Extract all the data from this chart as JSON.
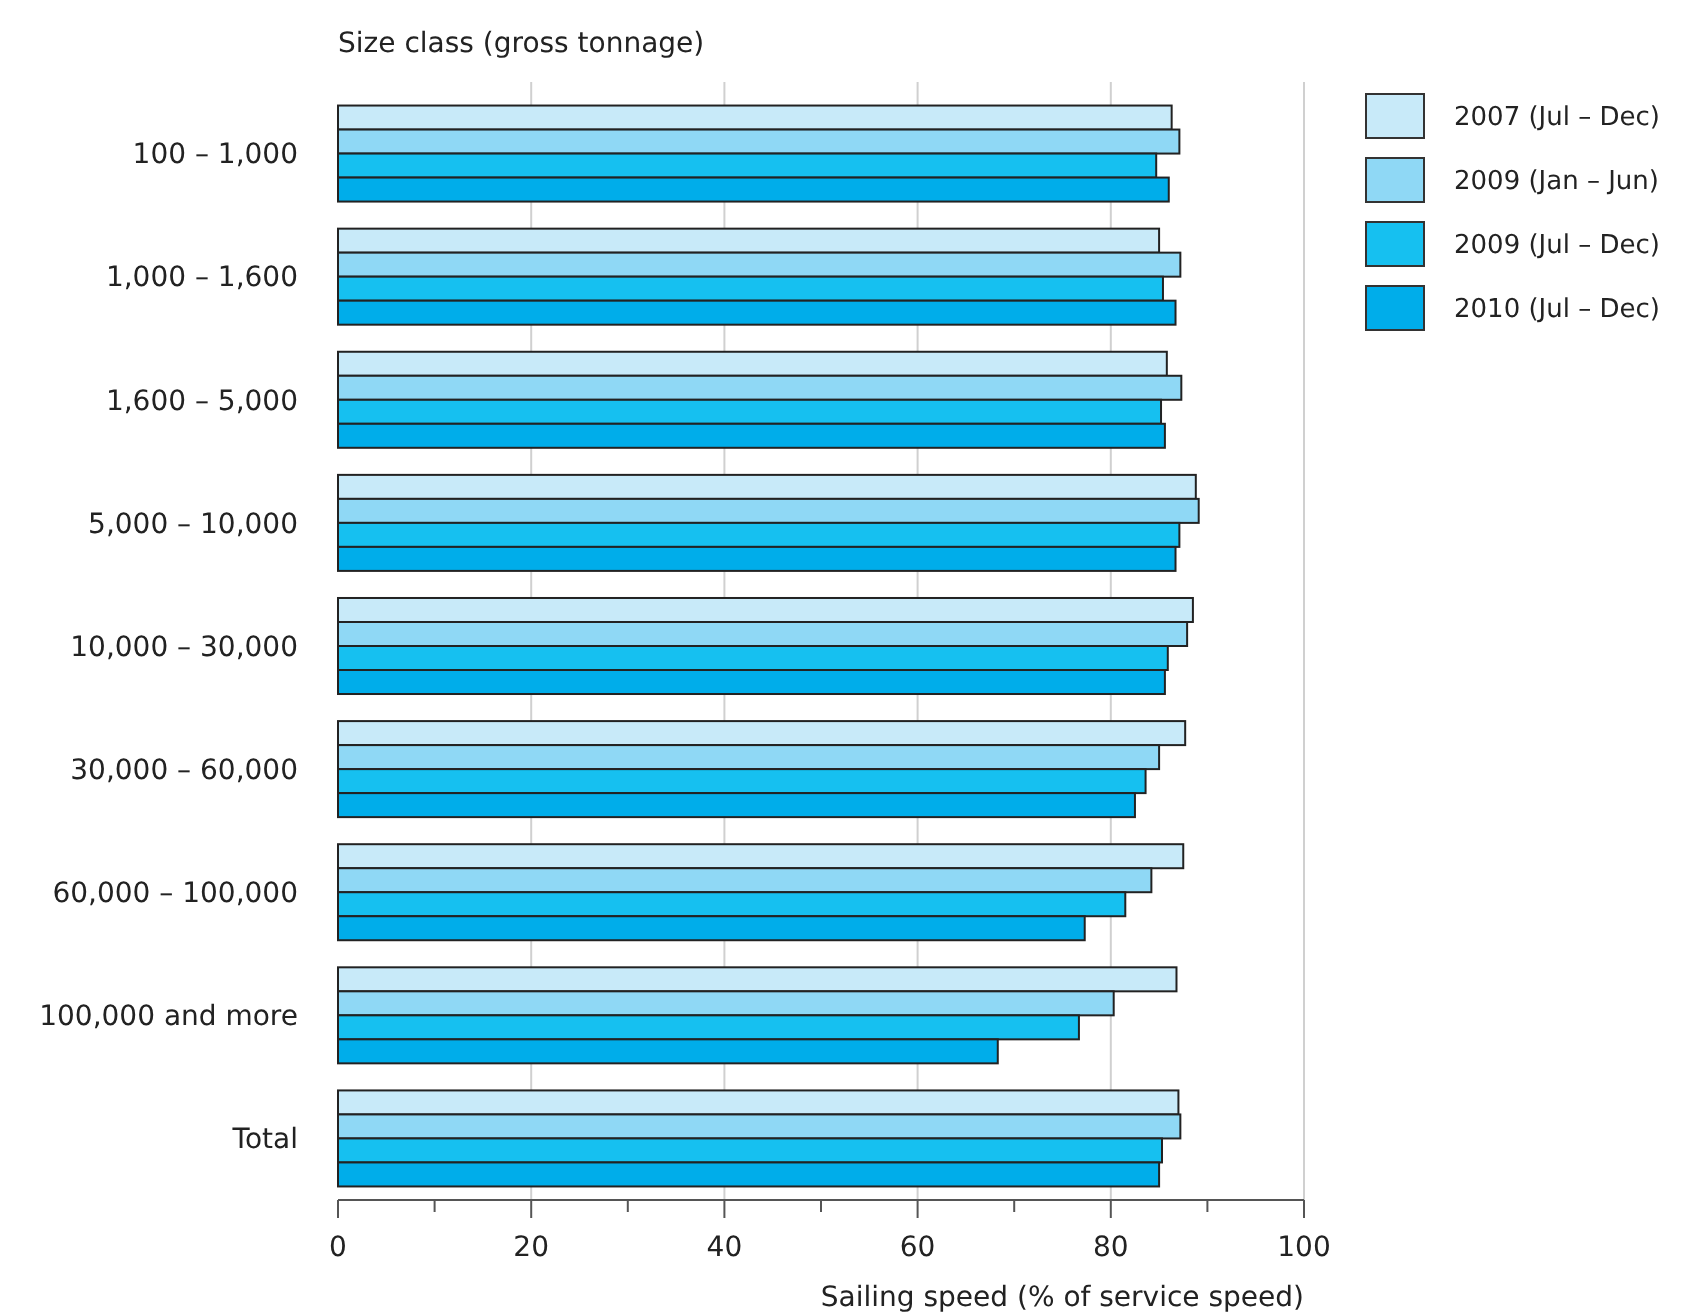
{
  "chart_data": {
    "type": "bar",
    "orientation": "horizontal",
    "ylabel": "Size class (gross tonnage)",
    "xlabel": "Sailing speed (% of service speed)",
    "categories": [
      "100 – 1,000",
      "1,000 – 1,600",
      "1,600 – 5,000",
      "5,000 – 10,000",
      "10,000 – 30,000",
      "30,000 – 60,000",
      "60,000 – 100,000",
      "100,000 and more",
      "Total"
    ],
    "series": [
      {
        "name": "2007 (Jul – Dec)",
        "color": "#c8eaf9",
        "values": [
          86.3,
          85.0,
          85.8,
          88.8,
          88.5,
          87.7,
          87.5,
          86.8,
          87.0
        ]
      },
      {
        "name": "2009 (Jan – Jun)",
        "color": "#8fd8f5",
        "values": [
          87.1,
          87.2,
          87.3,
          89.1,
          87.9,
          85.0,
          84.2,
          80.3,
          87.2
        ]
      },
      {
        "name": "2009 (Jul – Dec)",
        "color": "#16c0f0",
        "values": [
          84.7,
          85.4,
          85.2,
          87.1,
          85.9,
          83.6,
          81.5,
          76.7,
          85.3
        ]
      },
      {
        "name": "2010 (Jul – Dec)",
        "color": "#00adea",
        "values": [
          86.0,
          86.7,
          85.6,
          86.7,
          85.6,
          82.5,
          77.3,
          68.3,
          85.0
        ]
      }
    ],
    "xlim": [
      0,
      100
    ],
    "xticks": [
      0,
      {
        "value": 10,
        "label": null
      },
      20,
      {
        "value": 30,
        "label": null
      },
      40,
      {
        "value": 50,
        "label": null
      },
      60,
      {
        "value": 70,
        "label": null
      },
      80,
      {
        "value": 90,
        "label": null
      },
      100
    ],
    "grid": "x",
    "legend": "right"
  }
}
